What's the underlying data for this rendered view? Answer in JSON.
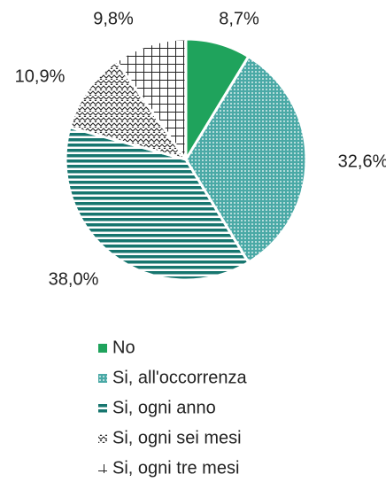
{
  "chart_data": {
    "type": "pie",
    "categories": [
      "No",
      "Si, all'occorrenza",
      "Si, ogni anno",
      "Si, ogni sei mesi",
      "Si, ogni tre mesi"
    ],
    "values": [
      8.7,
      32.6,
      38.0,
      10.9,
      9.8
    ],
    "value_labels": [
      "8,7%",
      "32,6%",
      "38,0%",
      "10,9%",
      "9,8%"
    ],
    "colors": [
      "#1fa35c",
      "#4aa9a6",
      "#17766f",
      "#222222",
      "#222222"
    ],
    "legend": "bottom"
  }
}
